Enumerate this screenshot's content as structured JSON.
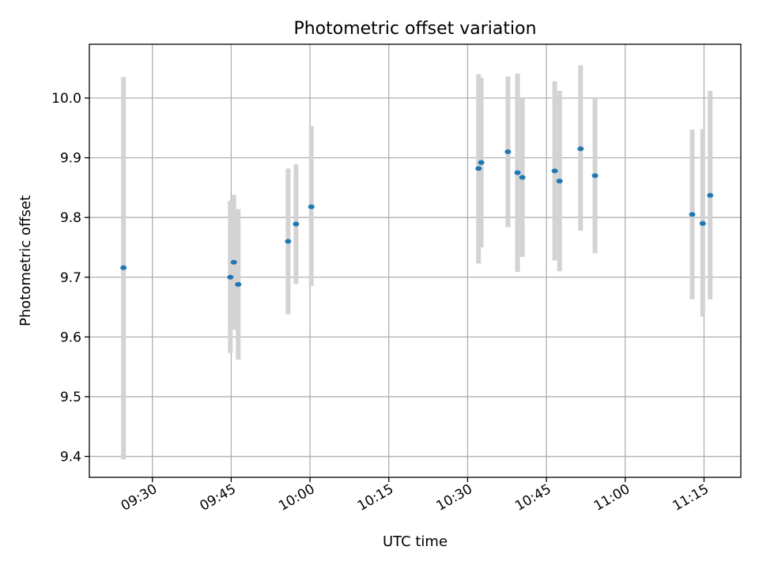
{
  "chart_data": {
    "type": "scatter",
    "title": "Photometric offset variation",
    "xlabel": "UTC time",
    "ylabel": "Photometric offset",
    "x_ticks": [
      "09:30",
      "09:45",
      "10:00",
      "10:15",
      "10:30",
      "10:45",
      "11:00",
      "11:15"
    ],
    "y_ticks": [
      "9.4",
      "9.5",
      "9.6",
      "9.7",
      "9.8",
      "9.9",
      "10.0"
    ],
    "xlim": [
      "09:18",
      "11:22"
    ],
    "ylim": [
      9.365,
      10.09
    ],
    "grid": true,
    "colors": {
      "point": "#1f77b4",
      "errorbar": "#d3d3d3"
    },
    "points": [
      {
        "x": "09:24:30",
        "y": 9.716,
        "yerr_low": 9.395,
        "yerr_high": 10.035
      },
      {
        "x": "09:44:50",
        "y": 9.7,
        "yerr_low": 9.573,
        "yerr_high": 9.828
      },
      {
        "x": "09:45:30",
        "y": 9.725,
        "yerr_low": 9.612,
        "yerr_high": 9.838
      },
      {
        "x": "09:46:20",
        "y": 9.688,
        "yerr_low": 9.562,
        "yerr_high": 9.814
      },
      {
        "x": "09:55:50",
        "y": 9.76,
        "yerr_low": 9.638,
        "yerr_high": 9.882
      },
      {
        "x": "09:57:20",
        "y": 9.789,
        "yerr_low": 9.689,
        "yerr_high": 9.889
      },
      {
        "x": "10:00:15",
        "y": 9.818,
        "yerr_low": 9.685,
        "yerr_high": 9.953
      },
      {
        "x": "10:32:05",
        "y": 9.882,
        "yerr_low": 9.723,
        "yerr_high": 10.04
      },
      {
        "x": "10:32:35",
        "y": 9.892,
        "yerr_low": 9.75,
        "yerr_high": 10.034
      },
      {
        "x": "10:37:40",
        "y": 9.91,
        "yerr_low": 9.784,
        "yerr_high": 10.036
      },
      {
        "x": "10:39:30",
        "y": 9.875,
        "yerr_low": 9.709,
        "yerr_high": 10.041
      },
      {
        "x": "10:40:25",
        "y": 9.867,
        "yerr_low": 9.734,
        "yerr_high": 10.0
      },
      {
        "x": "10:46:35",
        "y": 9.878,
        "yerr_low": 9.728,
        "yerr_high": 10.028
      },
      {
        "x": "10:47:30",
        "y": 9.861,
        "yerr_low": 9.71,
        "yerr_high": 10.012
      },
      {
        "x": "10:51:30",
        "y": 9.915,
        "yerr_low": 9.778,
        "yerr_high": 10.055
      },
      {
        "x": "10:54:15",
        "y": 9.87,
        "yerr_low": 9.74,
        "yerr_high": 10.0
      },
      {
        "x": "11:12:45",
        "y": 9.805,
        "yerr_low": 9.663,
        "yerr_high": 9.947
      },
      {
        "x": "11:14:45",
        "y": 9.79,
        "yerr_low": 9.634,
        "yerr_high": 9.948
      },
      {
        "x": "11:16:10",
        "y": 9.837,
        "yerr_low": 9.663,
        "yerr_high": 10.012
      }
    ]
  }
}
